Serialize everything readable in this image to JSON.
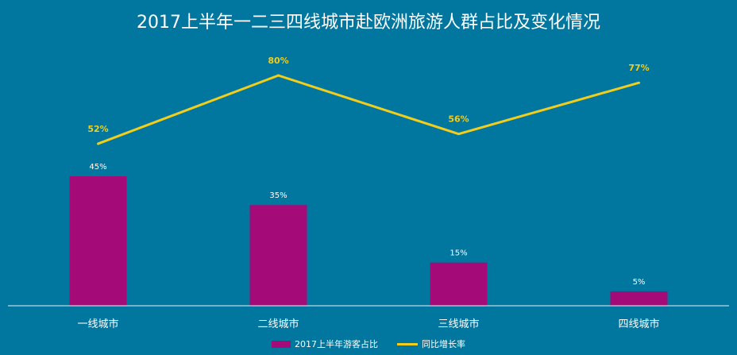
{
  "chart_data": {
    "type": "bar+line",
    "title": "2017上半年一二三四线城市赴欧洲旅游人群占比及变化情况",
    "categories": [
      "一线城市",
      "二线城市",
      "三线城市",
      "四线城市"
    ],
    "series": [
      {
        "name": "2017上半年游客占比",
        "type": "bar",
        "values": [
          45,
          35,
          15,
          5
        ],
        "labels": [
          "45%",
          "35%",
          "15%",
          "5%"
        ],
        "color": "#a40b78"
      },
      {
        "name": "同比增长率",
        "type": "line",
        "values": [
          52,
          80,
          56,
          77
        ],
        "labels": [
          "52%",
          "80%",
          "56%",
          "77%"
        ],
        "color": "#f2ce1c"
      }
    ],
    "legend_position": "bottom",
    "grid": false
  },
  "colors": {
    "background": "#01769e",
    "bar": "#a40b78",
    "line": "#f2ce1c",
    "text": "#ffffff"
  }
}
